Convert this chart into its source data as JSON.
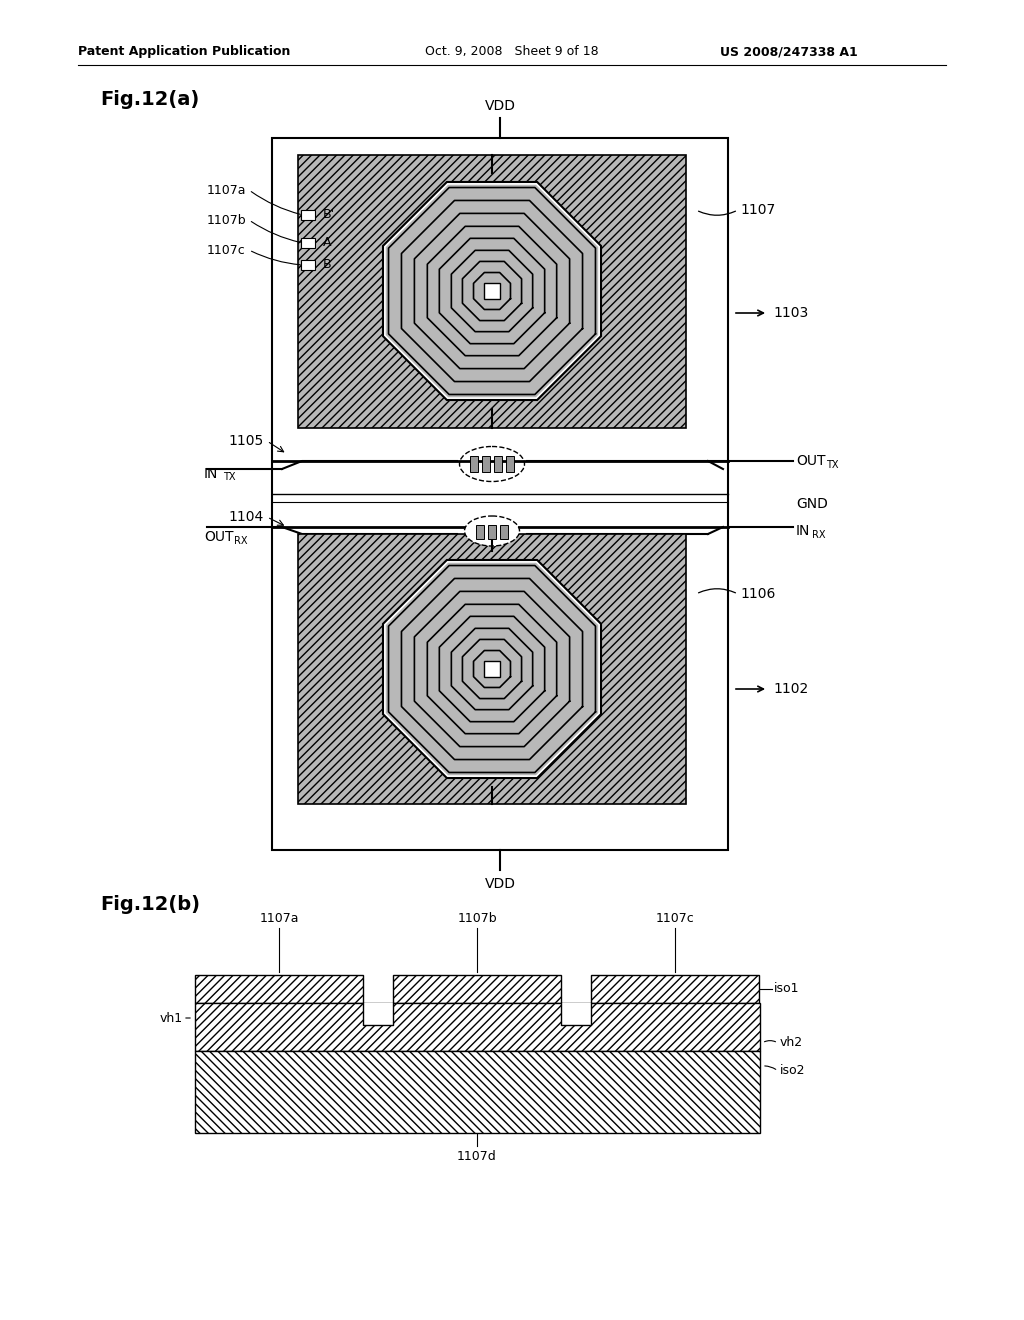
{
  "header_left": "Patent Application Publication",
  "header_mid": "Oct. 9, 2008   Sheet 9 of 18",
  "header_right": "US 2008/247338 A1",
  "fig_a_label": "Fig.12(a)",
  "fig_b_label": "Fig.12(b)",
  "bg_color": "#ffffff",
  "lc": "#000000",
  "gray_fill": "#b8b8b8",
  "labels": {
    "VDD_top": "VDD",
    "VDD_bottom": "VDD",
    "GND": "GND",
    "n1107": "1107",
    "n1107a": "1107a",
    "n1107b": "1107b",
    "n1107c": "1107c",
    "n1107d": "1107d",
    "n1106": "1106",
    "n1105": "1105",
    "n1104": "1104",
    "n1103": "1103",
    "n1102": "1102",
    "A": "A",
    "B": "B",
    "Bprime": "B'",
    "vh1": "vh1",
    "vh2": "vh2",
    "iso1": "iso1",
    "iso2": "iso2"
  }
}
